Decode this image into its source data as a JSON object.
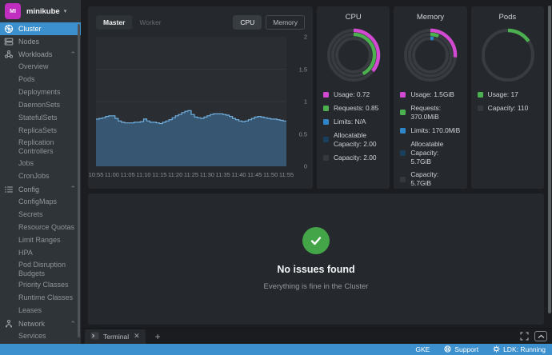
{
  "colors": {
    "accent_blue": "#3d90ce",
    "magenta": "#d24ad2",
    "green": "#4caf50",
    "limits_blue": "#2e86c9",
    "allocatable_navy": "#1a3f5c",
    "capacity_gray": "#35393e",
    "chart_line": "#71aede",
    "chart_fill": "#3a5d7c",
    "success_green": "#43a547",
    "avatar_magenta": "#bf2ebf"
  },
  "sidebar": {
    "cluster_switcher": {
      "initials": "MI",
      "name": "minikube"
    },
    "items": [
      {
        "label": "Cluster",
        "icon": "cluster",
        "active": true
      },
      {
        "label": "Nodes",
        "icon": "nodes"
      },
      {
        "label": "Workloads",
        "icon": "workloads",
        "expanded": true,
        "children": [
          "Overview",
          "Pods",
          "Deployments",
          "DaemonSets",
          "StatefulSets",
          "ReplicaSets",
          "Replication Controllers",
          "Jobs",
          "CronJobs"
        ]
      },
      {
        "label": "Config",
        "icon": "config",
        "expanded": true,
        "children": [
          "ConfigMaps",
          "Secrets",
          "Resource Quotas",
          "Limit Ranges",
          "HPA",
          "Pod Disruption Budgets",
          "Priority Classes",
          "Runtime Classes",
          "Leases"
        ]
      },
      {
        "label": "Network",
        "icon": "network",
        "expanded": true,
        "children": [
          "Services"
        ]
      }
    ]
  },
  "toolbar": {
    "node_tabs": [
      "Master",
      "Worker"
    ],
    "active_node_tab": "Master",
    "metric_tabs": [
      "CPU",
      "Memory"
    ],
    "active_metric_tab": "CPU"
  },
  "chart_data": [
    {
      "type": "area",
      "title": "Cluster CPU usage (step area)",
      "ylim": [
        0,
        2
      ],
      "yticks": [
        2,
        1.5,
        1,
        0.5,
        0
      ],
      "xticks": [
        "10:55",
        "11:00",
        "11:05",
        "11:10",
        "11:15",
        "11:20",
        "11:25",
        "11:30",
        "11:35",
        "11:40",
        "11:45",
        "11:50",
        "11:55"
      ],
      "interval_minutes": 1,
      "grid": true,
      "values": [
        0.73,
        0.74,
        0.75,
        0.77,
        0.78,
        0.78,
        0.74,
        0.7,
        0.68,
        0.67,
        0.67,
        0.67,
        0.68,
        0.68,
        0.69,
        0.73,
        0.7,
        0.68,
        0.68,
        0.67,
        0.66,
        0.68,
        0.7,
        0.72,
        0.75,
        0.78,
        0.8,
        0.83,
        0.85,
        0.86,
        0.8,
        0.76,
        0.75,
        0.74,
        0.76,
        0.78,
        0.8,
        0.81,
        0.81,
        0.81,
        0.8,
        0.79,
        0.77,
        0.74,
        0.72,
        0.7,
        0.69,
        0.7,
        0.72,
        0.74,
        0.76,
        0.77,
        0.76,
        0.75,
        0.74,
        0.73,
        0.73,
        0.72,
        0.71,
        0.7,
        0.7
      ]
    },
    {
      "type": "donut",
      "title": "CPU",
      "track_rings": 3,
      "segments": [
        {
          "text": "Usage: 0.72",
          "value": 0.72,
          "fraction": 0.36,
          "color": "#d24ad2"
        },
        {
          "text": "Requests: 0.85",
          "value": 0.85,
          "fraction": 0.425,
          "color": "#4caf50"
        },
        {
          "text": "Limits: N/A",
          "value": null,
          "fraction": 0,
          "color": "#2e86c9"
        },
        {
          "text": "Allocatable Capacity: 2.00",
          "value": 2.0,
          "color": "#1a3f5c"
        },
        {
          "text": "Capacity: 2.00",
          "value": 2.0,
          "color": "#35393e"
        }
      ]
    },
    {
      "type": "donut",
      "title": "Memory",
      "track_rings": 3,
      "segments": [
        {
          "text": "Usage: 1.5GiB",
          "value": "1.5GiB",
          "fraction": 0.263,
          "color": "#d24ad2"
        },
        {
          "text": "Requests: 370.0MiB",
          "value": "370.0MiB",
          "fraction": 0.063,
          "color": "#4caf50"
        },
        {
          "text": "Limits: 170.0MiB",
          "value": "170.0MiB",
          "fraction": 0.029,
          "color": "#2e86c9"
        },
        {
          "text": "Allocatable Capacity: 5.7GiB",
          "value": "5.7GiB",
          "color": "#1a3f5c"
        },
        {
          "text": "Capacity: 5.7GiB",
          "value": "5.7GiB",
          "color": "#35393e"
        }
      ]
    },
    {
      "type": "donut",
      "title": "Pods",
      "track_rings": 1,
      "segments": [
        {
          "text": "Usage: 17",
          "value": 17,
          "fraction": 0.155,
          "color": "#4caf50"
        },
        {
          "text": "Capacity: 110",
          "value": 110,
          "color": "#35393e"
        }
      ]
    }
  ],
  "issues": {
    "title": "No issues found",
    "subtitle": "Everything is fine in the Cluster"
  },
  "dock": {
    "tab_label": "Terminal",
    "close_label": "✕",
    "add_label": "+"
  },
  "statusbar": {
    "items": [
      {
        "label": "GKE"
      },
      {
        "label": "Support",
        "icon": "lifebuoy"
      },
      {
        "label": "LDK: Running",
        "icon": "gear"
      }
    ]
  }
}
